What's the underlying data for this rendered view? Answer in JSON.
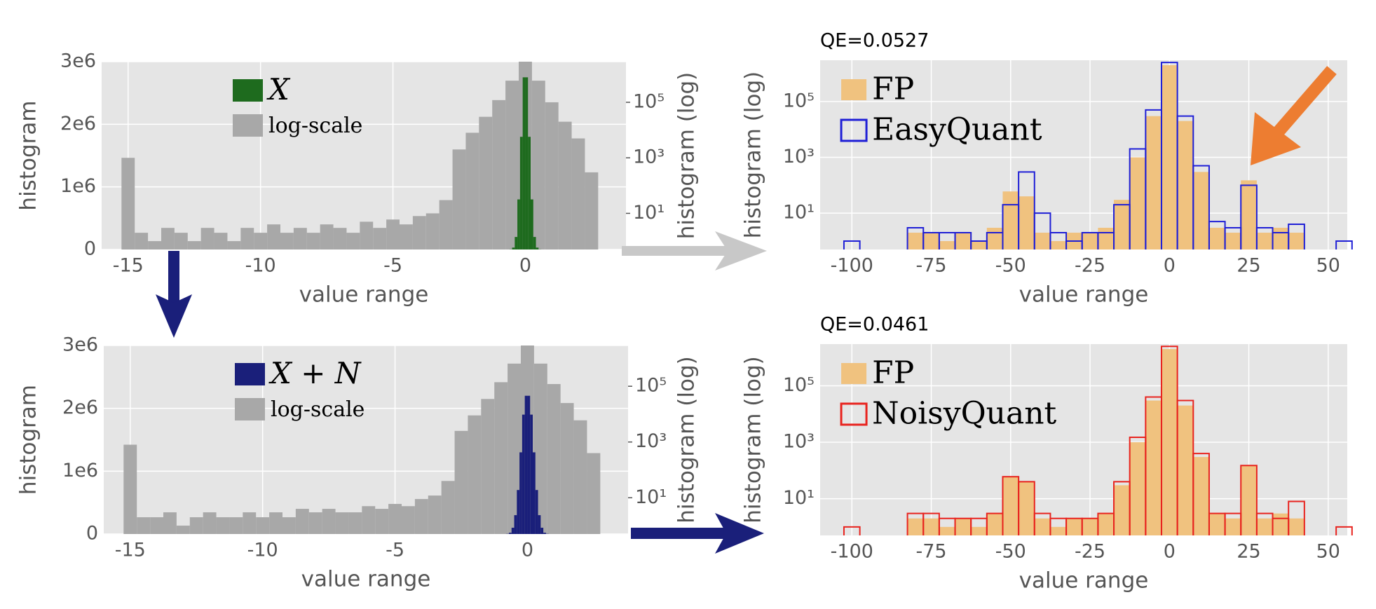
{
  "chart_data": [
    {
      "type": "histogram",
      "xlabel": "value range",
      "ylabel": "histogram",
      "y2label": "histogram (log)",
      "xlim": [
        -16,
        3.8
      ],
      "xticks": [
        -15,
        -10,
        -5,
        0
      ],
      "ylim": [
        0,
        3000000
      ],
      "yticks": [
        0,
        {
          "value": 1000000,
          "label": "1e6"
        },
        {
          "value": 2000000,
          "label": "2e6"
        },
        {
          "value": 3000000,
          "label": "3e6"
        }
      ],
      "y2lim": [
        0.5,
        2900000
      ],
      "y2scale": "log",
      "y2ticks": [
        {
          "value": 10,
          "label": "10¹"
        },
        {
          "value": 1000,
          "label": "10³"
        },
        {
          "value": 100000,
          "label": "10⁵"
        }
      ],
      "grid": true,
      "legend": "upper center",
      "series": [
        {
          "name": "X",
          "color": "#1e6b1e",
          "histtype": "bar",
          "bins": [
            -0.6,
            -0.5,
            -0.4,
            -0.3,
            -0.2,
            -0.1,
            0,
            0.1,
            0.2,
            0.3,
            0.4,
            0.5,
            0.6
          ],
          "values": [
            2000,
            30000,
            200000,
            800000,
            1800000,
            2750000,
            2750000,
            1800000,
            800000,
            200000,
            30000,
            2000
          ]
        },
        {
          "name": "log-scale",
          "color": "#a8a8a8",
          "histtype": "bar",
          "axis": "y2",
          "bins": [
            -15.25,
            -14.75,
            -14.25,
            -13.75,
            -13.25,
            -12.75,
            -12.25,
            -11.75,
            -11.25,
            -10.75,
            -10.25,
            -9.75,
            -9.25,
            -8.75,
            -8.25,
            -7.75,
            -7.25,
            -6.75,
            -6.25,
            -5.75,
            -5.25,
            -4.75,
            -4.25,
            -3.75,
            -3.25,
            -2.75,
            -2.25,
            -1.75,
            -1.25,
            -0.75,
            -0.25,
            0.25,
            0.75,
            1.25,
            1.75,
            2.25,
            2.75
          ],
          "values": [
            1000,
            2,
            1,
            3,
            2,
            1,
            3,
            2,
            1,
            3,
            2,
            4,
            2,
            3,
            2,
            4,
            3,
            2,
            5,
            3,
            6,
            4,
            8,
            10,
            30,
            2000,
            8000,
            30000,
            120000,
            600000,
            2900000,
            600000,
            100000,
            20000,
            5000,
            300
          ]
        }
      ]
    },
    {
      "type": "histogram",
      "xlabel": "value range",
      "ylabel": "histogram",
      "y2label": "histogram (log)",
      "xlim": [
        -16,
        3.8
      ],
      "xticks": [
        -15,
        -10,
        -5,
        0
      ],
      "ylim": [
        0,
        3000000
      ],
      "yticks": [
        0,
        {
          "value": 1000000,
          "label": "1e6"
        },
        {
          "value": 2000000,
          "label": "2e6"
        },
        {
          "value": 3000000,
          "label": "3e6"
        }
      ],
      "y2lim": [
        0.5,
        2900000
      ],
      "y2scale": "log",
      "y2ticks": [
        {
          "value": 10,
          "label": "10¹"
        },
        {
          "value": 1000,
          "label": "10³"
        },
        {
          "value": 100000,
          "label": "10⁵"
        }
      ],
      "grid": true,
      "legend": "upper center",
      "series": [
        {
          "name": "X + N",
          "color": "#1a1f7a",
          "histtype": "bar",
          "bins": [
            -0.8,
            -0.7,
            -0.6,
            -0.5,
            -0.4,
            -0.3,
            -0.2,
            -0.1,
            0,
            0.1,
            0.2,
            0.3,
            0.4,
            0.5,
            0.6,
            0.7,
            0.8
          ],
          "values": [
            3000,
            20000,
            100000,
            300000,
            700000,
            1300000,
            1900000,
            2200000,
            2200000,
            1900000,
            1300000,
            700000,
            300000,
            100000,
            20000,
            3000
          ]
        },
        {
          "name": "log-scale",
          "color": "#a8a8a8",
          "histtype": "bar",
          "axis": "y2",
          "bins": [
            -15.25,
            -14.75,
            -14.25,
            -13.75,
            -13.25,
            -12.75,
            -12.25,
            -11.75,
            -11.25,
            -10.75,
            -10.25,
            -9.75,
            -9.25,
            -8.75,
            -8.25,
            -7.75,
            -7.25,
            -6.75,
            -6.25,
            -5.75,
            -5.25,
            -4.75,
            -4.25,
            -3.75,
            -3.25,
            -2.75,
            -2.25,
            -1.75,
            -1.25,
            -0.75,
            -0.25,
            0.25,
            0.75,
            1.25,
            1.75,
            2.25,
            2.75
          ],
          "values": [
            800,
            2,
            2,
            3,
            1,
            2,
            3,
            2,
            2,
            3,
            2,
            3,
            2,
            4,
            3,
            4,
            3,
            3,
            5,
            4,
            6,
            5,
            9,
            12,
            40,
            2500,
            9000,
            35000,
            140000,
            650000,
            2900000,
            650000,
            120000,
            25000,
            6000,
            400
          ]
        }
      ]
    },
    {
      "type": "histogram",
      "title": "QE=0.0527",
      "xlabel": "value range",
      "ylabel": "histogram (log)",
      "xlim": [
        -110,
        56
      ],
      "xticks": [
        -100,
        -75,
        -50,
        -25,
        0,
        25,
        50
      ],
      "ylim": [
        0.5,
        3000000
      ],
      "yscale": "log",
      "yticks": [
        {
          "value": 10,
          "label": "10¹"
        },
        {
          "value": 1000,
          "label": "10³"
        },
        {
          "value": 100000,
          "label": "10⁵"
        }
      ],
      "grid": true,
      "legend": "upper left",
      "series": [
        {
          "name": "FP",
          "color": "#f0c27f",
          "histtype": "bar",
          "bins": [
            -82.5,
            -77.5,
            -72.5,
            -67.5,
            -62.5,
            -57.5,
            -52.5,
            -47.5,
            -42.5,
            -37.5,
            -32.5,
            -27.5,
            -22.5,
            -17.5,
            -12.5,
            -7.5,
            -2.5,
            2.5,
            7.5,
            12.5,
            17.5,
            22.5,
            27.5,
            32.5,
            37.5,
            42.5
          ],
          "values": [
            2,
            2,
            1,
            2,
            1,
            3,
            60,
            40,
            2,
            1,
            2,
            2,
            3,
            30,
            1000,
            30000,
            2000000,
            20000,
            300,
            3,
            2,
            150,
            2,
            3,
            2
          ]
        },
        {
          "name": "EasyQuant",
          "color": "#1f1fd6",
          "histtype": "step",
          "bins": [
            -102.5,
            -97.5,
            -92.5,
            -87.5,
            -82.5,
            -77.5,
            -72.5,
            -67.5,
            -62.5,
            -57.5,
            -52.5,
            -47.5,
            -42.5,
            -37.5,
            -32.5,
            -27.5,
            -22.5,
            -17.5,
            -12.5,
            -7.5,
            -2.5,
            2.5,
            7.5,
            12.5,
            17.5,
            22.5,
            27.5,
            32.5,
            37.5,
            42.5,
            47.5,
            52.5,
            57.5
          ],
          "values": [
            1,
            null,
            null,
            null,
            3,
            2,
            2,
            2,
            1,
            2,
            20,
            300,
            10,
            2,
            1,
            2,
            2,
            20,
            2000,
            50000,
            2500000,
            30000,
            500,
            5,
            3,
            100,
            3,
            2,
            4,
            null,
            null,
            1
          ]
        }
      ]
    },
    {
      "type": "histogram",
      "title": "QE=0.0461",
      "xlabel": "value range",
      "ylabel": "histogram (log)",
      "xlim": [
        -110,
        56
      ],
      "xticks": [
        -100,
        -75,
        -50,
        -25,
        0,
        25,
        50
      ],
      "ylim": [
        0.5,
        3000000
      ],
      "yscale": "log",
      "yticks": [
        {
          "value": 10,
          "label": "10¹"
        },
        {
          "value": 1000,
          "label": "10³"
        },
        {
          "value": 100000,
          "label": "10⁵"
        }
      ],
      "grid": true,
      "legend": "upper left",
      "series": [
        {
          "name": "FP",
          "color": "#f0c27f",
          "histtype": "bar",
          "bins": [
            -82.5,
            -77.5,
            -72.5,
            -67.5,
            -62.5,
            -57.5,
            -52.5,
            -47.5,
            -42.5,
            -37.5,
            -32.5,
            -27.5,
            -22.5,
            -17.5,
            -12.5,
            -7.5,
            -2.5,
            2.5,
            7.5,
            12.5,
            17.5,
            22.5,
            27.5,
            32.5,
            37.5,
            42.5
          ],
          "values": [
            2,
            2,
            1,
            2,
            1,
            3,
            60,
            40,
            2,
            1,
            2,
            2,
            3,
            30,
            1000,
            30000,
            2000000,
            20000,
            300,
            3,
            2,
            150,
            2,
            3,
            2
          ]
        },
        {
          "name": "NoisyQuant",
          "color": "#e8231e",
          "histtype": "step",
          "bins": [
            -102.5,
            -97.5,
            -92.5,
            -87.5,
            -82.5,
            -77.5,
            -72.5,
            -67.5,
            -62.5,
            -57.5,
            -52.5,
            -47.5,
            -42.5,
            -37.5,
            -32.5,
            -27.5,
            -22.5,
            -17.5,
            -12.5,
            -7.5,
            -2.5,
            2.5,
            7.5,
            12.5,
            17.5,
            22.5,
            27.5,
            32.5,
            37.5,
            42.5,
            47.5,
            52.5,
            57.5
          ],
          "values": [
            1,
            null,
            null,
            null,
            3,
            3,
            2,
            2,
            2,
            3,
            60,
            40,
            3,
            2,
            2,
            2,
            3,
            40,
            1500,
            40000,
            2500000,
            30000,
            400,
            3,
            3,
            150,
            3,
            2,
            8,
            null,
            null,
            1
          ]
        }
      ]
    }
  ]
}
